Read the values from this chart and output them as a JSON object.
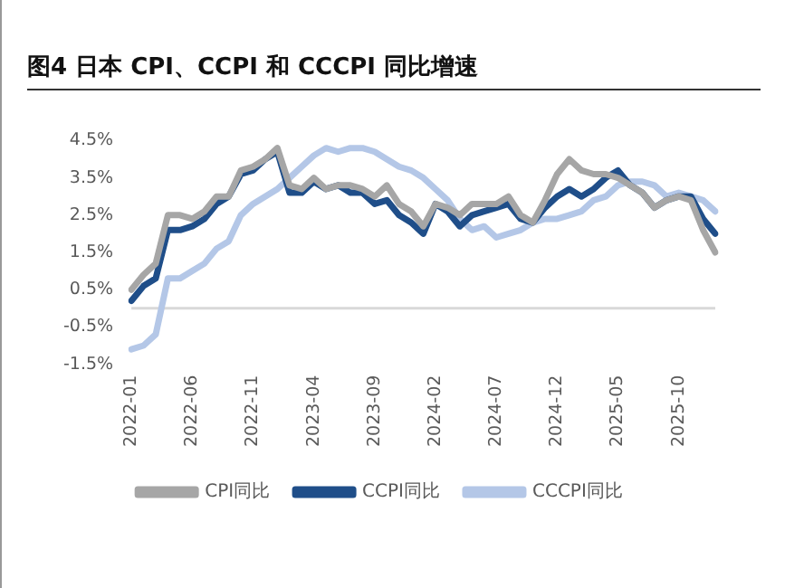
{
  "chart_data": {
    "type": "line",
    "title": "图4   日本 CPI、CCPI 和 CCCPI 同比增速",
    "categories": [
      "2022-01",
      null,
      null,
      null,
      null,
      "2022-06",
      null,
      null,
      null,
      null,
      "2022-11",
      null,
      null,
      null,
      null,
      "2023-04",
      null,
      null,
      null,
      null,
      "2023-09",
      null,
      null,
      null,
      null,
      "2024-02",
      null,
      null,
      null,
      null,
      "2024-07",
      null,
      null,
      null,
      null,
      "2024-12",
      null,
      null,
      null,
      null,
      "2025-05",
      null,
      null,
      null,
      null,
      "2025-10",
      null,
      null,
      null
    ],
    "series": [
      {
        "name": "CPI同比",
        "color": "#a6a6a6",
        "values": [
          0.5,
          0.9,
          1.2,
          2.5,
          2.5,
          2.4,
          2.6,
          3.0,
          3.0,
          3.7,
          3.8,
          4.0,
          4.3,
          3.3,
          3.2,
          3.5,
          3.2,
          3.3,
          3.3,
          3.2,
          3.0,
          3.3,
          2.8,
          2.6,
          2.2,
          2.8,
          2.7,
          2.5,
          2.8,
          2.8,
          2.8,
          3.0,
          2.5,
          2.3,
          2.9,
          3.6,
          4.0,
          3.7,
          3.6,
          3.6,
          3.5,
          3.3,
          3.1,
          2.7,
          2.9,
          3.0,
          2.9,
          2.1,
          1.5
        ]
      },
      {
        "name": "CCPI同比",
        "color": "#1f4e89",
        "values": [
          0.2,
          0.6,
          0.8,
          2.1,
          2.1,
          2.2,
          2.4,
          2.8,
          3.0,
          3.6,
          3.7,
          4.0,
          4.2,
          3.1,
          3.1,
          3.4,
          3.2,
          3.3,
          3.1,
          3.1,
          2.8,
          2.9,
          2.5,
          2.3,
          2.0,
          2.8,
          2.6,
          2.2,
          2.5,
          2.6,
          2.7,
          2.8,
          2.4,
          2.3,
          2.7,
          3.0,
          3.2,
          3.0,
          3.2,
          3.5,
          3.7,
          3.3,
          3.1,
          2.7,
          2.9,
          3.0,
          3.0,
          2.4,
          2.0
        ]
      },
      {
        "name": "CCCPI同比",
        "color": "#b4c7e7",
        "values": [
          -1.1,
          -1.0,
          -0.7,
          0.8,
          0.8,
          1.0,
          1.2,
          1.6,
          1.8,
          2.5,
          2.8,
          3.0,
          3.2,
          3.5,
          3.8,
          4.1,
          4.3,
          4.2,
          4.3,
          4.3,
          4.2,
          4.0,
          3.8,
          3.7,
          3.5,
          3.2,
          2.9,
          2.4,
          2.1,
          2.2,
          1.9,
          2.0,
          2.1,
          2.3,
          2.4,
          2.4,
          2.5,
          2.6,
          2.9,
          3.0,
          3.3,
          3.4,
          3.4,
          3.3,
          3.0,
          3.1,
          3.0,
          2.9,
          2.6
        ]
      }
    ],
    "ylim": [
      -1.5,
      4.5
    ],
    "yticks": [
      {
        "value": -1.5,
        "label": "-1.5%"
      },
      {
        "value": -0.5,
        "label": "-0.5%"
      },
      {
        "value": 0.5,
        "label": "0.5%"
      },
      {
        "value": 1.5,
        "label": "1.5%"
      },
      {
        "value": 2.5,
        "label": "2.5%"
      },
      {
        "value": 3.5,
        "label": "3.5%"
      },
      {
        "value": 4.5,
        "label": "4.5%"
      }
    ],
    "ref_lines": [
      {
        "axis": "y",
        "value": 0,
        "color": "#d9d9d9"
      }
    ],
    "grid": false,
    "legend": "bottom",
    "marker": "none",
    "line_style": "solid"
  }
}
